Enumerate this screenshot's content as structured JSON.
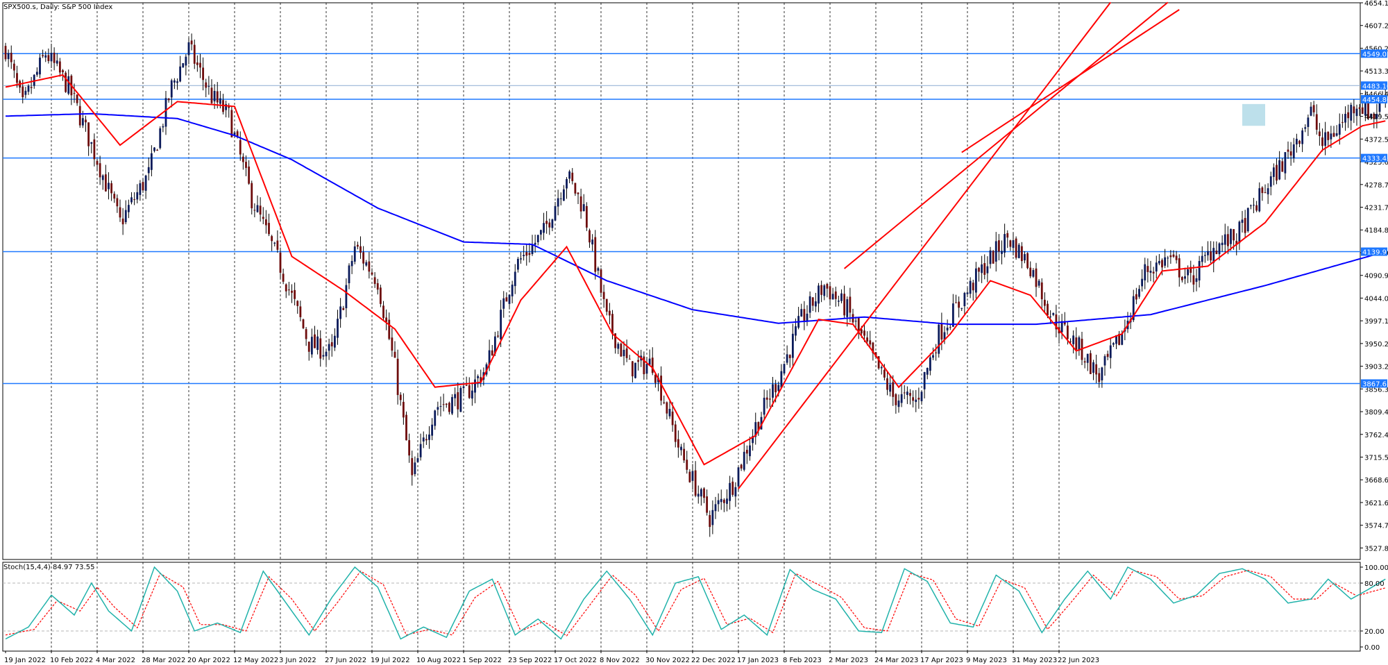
{
  "header": {
    "chart_label": "SPX500.s, Daily:  S&P 500 Index",
    "stoch_label": "Stoch(15,4,4) 84.97 73.55"
  },
  "colors": {
    "background": "#ffffff",
    "grid": "#000000",
    "candle_up": "#0a1a5a",
    "candle_down": "#6e0c0c",
    "ma_fast": "#ff0000",
    "ma_slow": "#0000ff",
    "hline": "#1e78ff",
    "channel": "#ff0000",
    "stoch_main": "#20b2aa",
    "stoch_signal": "#ff0000",
    "highlight_box": "#add8e6"
  },
  "chart_data": {
    "type": "candlestick",
    "symbol": "SPX500.s",
    "timeframe": "Daily",
    "title": "S&P 500 Index",
    "ylim": [
      3504,
      4654.15
    ],
    "price_ticks": [
      4654.15,
      4607.29,
      4560.29,
      4513.36,
      4466.43,
      4419.5,
      4372.57,
      4325.64,
      4278.71,
      4231.78,
      4184.85,
      4137.92,
      4090.99,
      4044.06,
      3997.13,
      3950.2,
      3903.27,
      3856.34,
      3809.41,
      3762.48,
      3715.55,
      3668.62,
      3621.69,
      3574.76,
      3527.83
    ],
    "price_labels": [
      {
        "value": 4549.05,
        "text": "4549.05"
      },
      {
        "value": 4483.1,
        "text": "4483.10"
      },
      {
        "value": 4454.86,
        "text": "4454.86"
      },
      {
        "value": 4333.45,
        "text": "4333.45"
      },
      {
        "value": 4139.97,
        "text": "4139.97"
      },
      {
        "value": 3867.61,
        "text": "3867.61"
      }
    ],
    "horizontal_levels": [
      4549.05,
      4454.86,
      4333.45,
      4139.97,
      3867.61
    ],
    "last_price_line": 4483.1,
    "date_labels": [
      "19 Jan 2022",
      "10 Feb 2022",
      "4 Mar 2022",
      "28 Mar 2022",
      "20 Apr 2022",
      "12 May 2022",
      "3 Jun 2022",
      "27 Jun 2022",
      "19 Jul 2022",
      "10 Aug 2022",
      "1 Sep 2022",
      "23 Sep 2022",
      "17 Oct 2022",
      "8 Nov 2022",
      "30 Nov 2022",
      "22 Dec 2022",
      "17 Jan 2023",
      "8 Feb 2023",
      "2 Mar 2023",
      "24 Mar 2023",
      "17 Apr 2023",
      "9 May 2023",
      "31 May 2023",
      "22 Jun 2023"
    ],
    "bars_per_label": 16,
    "close_anchors": [
      [
        0,
        4560
      ],
      [
        6,
        4440
      ],
      [
        14,
        4550
      ],
      [
        22,
        4480
      ],
      [
        32,
        4330
      ],
      [
        40,
        4200
      ],
      [
        50,
        4300
      ],
      [
        58,
        4480
      ],
      [
        64,
        4560
      ],
      [
        72,
        4460
      ],
      [
        78,
        4420
      ],
      [
        86,
        4250
      ],
      [
        96,
        4110
      ],
      [
        106,
        3950
      ],
      [
        114,
        3930
      ],
      [
        122,
        4150
      ],
      [
        130,
        4080
      ],
      [
        136,
        3900
      ],
      [
        142,
        3670
      ],
      [
        150,
        3820
      ],
      [
        160,
        3840
      ],
      [
        168,
        3900
      ],
      [
        178,
        4110
      ],
      [
        188,
        4180
      ],
      [
        196,
        4300
      ],
      [
        202,
        4230
      ],
      [
        210,
        4000
      ],
      [
        218,
        3900
      ],
      [
        226,
        3910
      ],
      [
        236,
        3720
      ],
      [
        246,
        3590
      ],
      [
        254,
        3660
      ],
      [
        262,
        3780
      ],
      [
        270,
        3880
      ],
      [
        278,
        4000
      ],
      [
        286,
        4070
      ],
      [
        294,
        4020
      ],
      [
        302,
        3930
      ],
      [
        310,
        3840
      ],
      [
        318,
        3830
      ],
      [
        326,
        3970
      ],
      [
        334,
        4040
      ],
      [
        342,
        4110
      ],
      [
        350,
        4170
      ],
      [
        358,
        4110
      ],
      [
        366,
        4000
      ],
      [
        374,
        3950
      ],
      [
        382,
        3880
      ],
      [
        390,
        3970
      ],
      [
        398,
        4100
      ],
      [
        406,
        4125
      ],
      [
        414,
        4080
      ],
      [
        422,
        4150
      ],
      [
        430,
        4170
      ],
      [
        440,
        4270
      ],
      [
        448,
        4340
      ],
      [
        456,
        4430
      ],
      [
        460,
        4360
      ],
      [
        466,
        4400
      ],
      [
        472,
        4450
      ],
      [
        478,
        4420
      ],
      [
        482,
        4470
      ]
    ],
    "ma_fast_anchors": [
      [
        0,
        4480
      ],
      [
        20,
        4505
      ],
      [
        40,
        4360
      ],
      [
        60,
        4450
      ],
      [
        80,
        4440
      ],
      [
        100,
        4130
      ],
      [
        118,
        4060
      ],
      [
        136,
        3980
      ],
      [
        150,
        3860
      ],
      [
        166,
        3870
      ],
      [
        180,
        4040
      ],
      [
        196,
        4150
      ],
      [
        212,
        3970
      ],
      [
        226,
        3900
      ],
      [
        244,
        3700
      ],
      [
        262,
        3760
      ],
      [
        284,
        4000
      ],
      [
        296,
        3990
      ],
      [
        312,
        3860
      ],
      [
        330,
        3970
      ],
      [
        344,
        4080
      ],
      [
        358,
        4050
      ],
      [
        374,
        3935
      ],
      [
        390,
        3970
      ],
      [
        404,
        4100
      ],
      [
        420,
        4110
      ],
      [
        440,
        4200
      ],
      [
        460,
        4350
      ],
      [
        474,
        4400
      ],
      [
        482,
        4410
      ]
    ],
    "ma_slow_anchors": [
      [
        0,
        4420
      ],
      [
        30,
        4425
      ],
      [
        60,
        4415
      ],
      [
        80,
        4380
      ],
      [
        100,
        4330
      ],
      [
        130,
        4230
      ],
      [
        160,
        4160
      ],
      [
        184,
        4155
      ],
      [
        210,
        4080
      ],
      [
        240,
        4020
      ],
      [
        270,
        3992
      ],
      [
        300,
        4005
      ],
      [
        330,
        3990
      ],
      [
        360,
        3990
      ],
      [
        400,
        4010
      ],
      [
        440,
        4070
      ],
      [
        482,
        4140
      ]
    ],
    "channel_lines": [
      {
        "from": [
          256,
          3650
        ],
        "to": [
          386,
          4655
        ]
      },
      {
        "from": [
          293,
          4105
        ],
        "to": [
          406,
          4655
        ]
      },
      {
        "from": [
          334,
          4345
        ],
        "to": [
          410,
          4640
        ]
      }
    ],
    "highlight_box": {
      "x_from": 432,
      "x_to": 440,
      "y_from": 4400,
      "y_to": 4445
    },
    "stochastic": {
      "params": "15,4,4",
      "main": 84.97,
      "signal": 73.55,
      "ylim": [
        0,
        100
      ],
      "ticks": [
        100.0,
        80.0,
        20.0,
        0.0
      ],
      "levels": [
        80,
        20
      ],
      "main_anchors": [
        [
          0,
          10
        ],
        [
          8,
          25
        ],
        [
          16,
          65
        ],
        [
          24,
          40
        ],
        [
          30,
          80
        ],
        [
          36,
          45
        ],
        [
          44,
          20
        ],
        [
          52,
          100
        ],
        [
          60,
          70
        ],
        [
          66,
          20
        ],
        [
          74,
          30
        ],
        [
          82,
          18
        ],
        [
          90,
          95
        ],
        [
          98,
          55
        ],
        [
          106,
          15
        ],
        [
          114,
          62
        ],
        [
          122,
          100
        ],
        [
          130,
          75
        ],
        [
          138,
          10
        ],
        [
          146,
          25
        ],
        [
          154,
          12
        ],
        [
          162,
          70
        ],
        [
          170,
          85
        ],
        [
          178,
          15
        ],
        [
          186,
          35
        ],
        [
          194,
          10
        ],
        [
          202,
          60
        ],
        [
          210,
          95
        ],
        [
          218,
          60
        ],
        [
          226,
          15
        ],
        [
          234,
          80
        ],
        [
          242,
          88
        ],
        [
          250,
          22
        ],
        [
          258,
          40
        ],
        [
          266,
          15
        ],
        [
          274,
          97
        ],
        [
          282,
          72
        ],
        [
          290,
          60
        ],
        [
          298,
          20
        ],
        [
          306,
          18
        ],
        [
          314,
          98
        ],
        [
          322,
          82
        ],
        [
          330,
          30
        ],
        [
          338,
          25
        ],
        [
          346,
          90
        ],
        [
          354,
          70
        ],
        [
          362,
          18
        ],
        [
          370,
          60
        ],
        [
          378,
          95
        ],
        [
          386,
          60
        ],
        [
          392,
          100
        ],
        [
          400,
          85
        ],
        [
          408,
          55
        ],
        [
          416,
          65
        ],
        [
          424,
          92
        ],
        [
          432,
          98
        ],
        [
          440,
          85
        ],
        [
          448,
          55
        ],
        [
          456,
          60
        ],
        [
          462,
          85
        ],
        [
          470,
          60
        ],
        [
          476,
          72
        ],
        [
          482,
          85
        ]
      ],
      "signal_anchors": [
        [
          0,
          15
        ],
        [
          10,
          22
        ],
        [
          18,
          58
        ],
        [
          26,
          45
        ],
        [
          32,
          75
        ],
        [
          38,
          50
        ],
        [
          46,
          24
        ],
        [
          54,
          92
        ],
        [
          62,
          75
        ],
        [
          68,
          28
        ],
        [
          76,
          28
        ],
        [
          84,
          20
        ],
        [
          92,
          88
        ],
        [
          100,
          60
        ],
        [
          108,
          20
        ],
        [
          116,
          56
        ],
        [
          124,
          95
        ],
        [
          132,
          78
        ],
        [
          140,
          15
        ],
        [
          148,
          22
        ],
        [
          156,
          15
        ],
        [
          164,
          62
        ],
        [
          172,
          82
        ],
        [
          180,
          20
        ],
        [
          188,
          32
        ],
        [
          196,
          14
        ],
        [
          204,
          52
        ],
        [
          212,
          90
        ],
        [
          220,
          65
        ],
        [
          228,
          20
        ],
        [
          236,
          72
        ],
        [
          244,
          86
        ],
        [
          252,
          28
        ],
        [
          260,
          36
        ],
        [
          268,
          18
        ],
        [
          276,
          92
        ],
        [
          284,
          78
        ],
        [
          292,
          62
        ],
        [
          300,
          24
        ],
        [
          308,
          20
        ],
        [
          316,
          92
        ],
        [
          324,
          84
        ],
        [
          332,
          35
        ],
        [
          340,
          26
        ],
        [
          348,
          85
        ],
        [
          356,
          74
        ],
        [
          364,
          22
        ],
        [
          372,
          55
        ],
        [
          380,
          90
        ],
        [
          388,
          64
        ],
        [
          394,
          96
        ],
        [
          402,
          88
        ],
        [
          410,
          60
        ],
        [
          418,
          64
        ],
        [
          426,
          88
        ],
        [
          434,
          96
        ],
        [
          442,
          88
        ],
        [
          450,
          60
        ],
        [
          458,
          60
        ],
        [
          464,
          80
        ],
        [
          472,
          64
        ],
        [
          478,
          70
        ],
        [
          482,
          74
        ]
      ]
    }
  }
}
